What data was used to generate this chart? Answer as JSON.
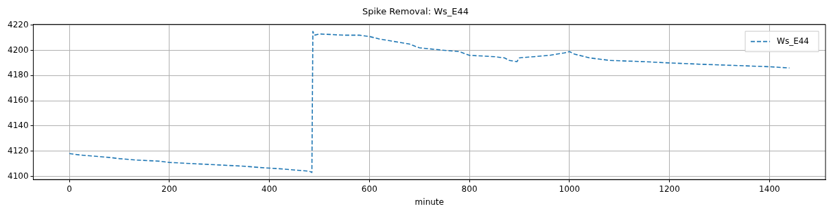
{
  "chart_data": {
    "type": "line",
    "title": "Spike Removal: Ws_E44",
    "xlabel": "minute",
    "xlim": [
      -72,
      1512
    ],
    "xticks": [
      0,
      200,
      400,
      600,
      800,
      1000,
      1200,
      1400
    ],
    "ylim": [
      4097.4,
      4220.6
    ],
    "yticks": [
      4100,
      4120,
      4140,
      4160,
      4180,
      4200,
      4220
    ],
    "grid": true,
    "legend": "top right",
    "line_style": "dashed",
    "marker": "none",
    "x": [
      0,
      20,
      50,
      80,
      100,
      130,
      180,
      200,
      250,
      300,
      350,
      380,
      420,
      450,
      480,
      485,
      487,
      490,
      500,
      550,
      580,
      600,
      620,
      650,
      680,
      700,
      750,
      780,
      800,
      850,
      870,
      880,
      895,
      900,
      930,
      960,
      990,
      1000,
      1010,
      1040,
      1080,
      1150,
      1200,
      1260,
      1330,
      1400,
      1440
    ],
    "series": [
      {
        "name": "Ws_E44",
        "color": "#1f77b4",
        "values": [
          4118,
          4117,
          4116,
          4115,
          4114,
          4113,
          4112,
          4111,
          4110,
          4109,
          4108,
          4107,
          4106,
          4105,
          4104,
          4103,
          4215,
          4212,
          4213,
          4212,
          4212,
          4211,
          4209,
          4207,
          4205,
          4202,
          4200,
          4199,
          4196,
          4195,
          4194,
          4192,
          4191,
          4194,
          4195,
          4196,
          4198,
          4199,
          4197,
          4194,
          4192,
          4191,
          4190,
          4189,
          4188,
          4187,
          4186
        ]
      }
    ]
  }
}
